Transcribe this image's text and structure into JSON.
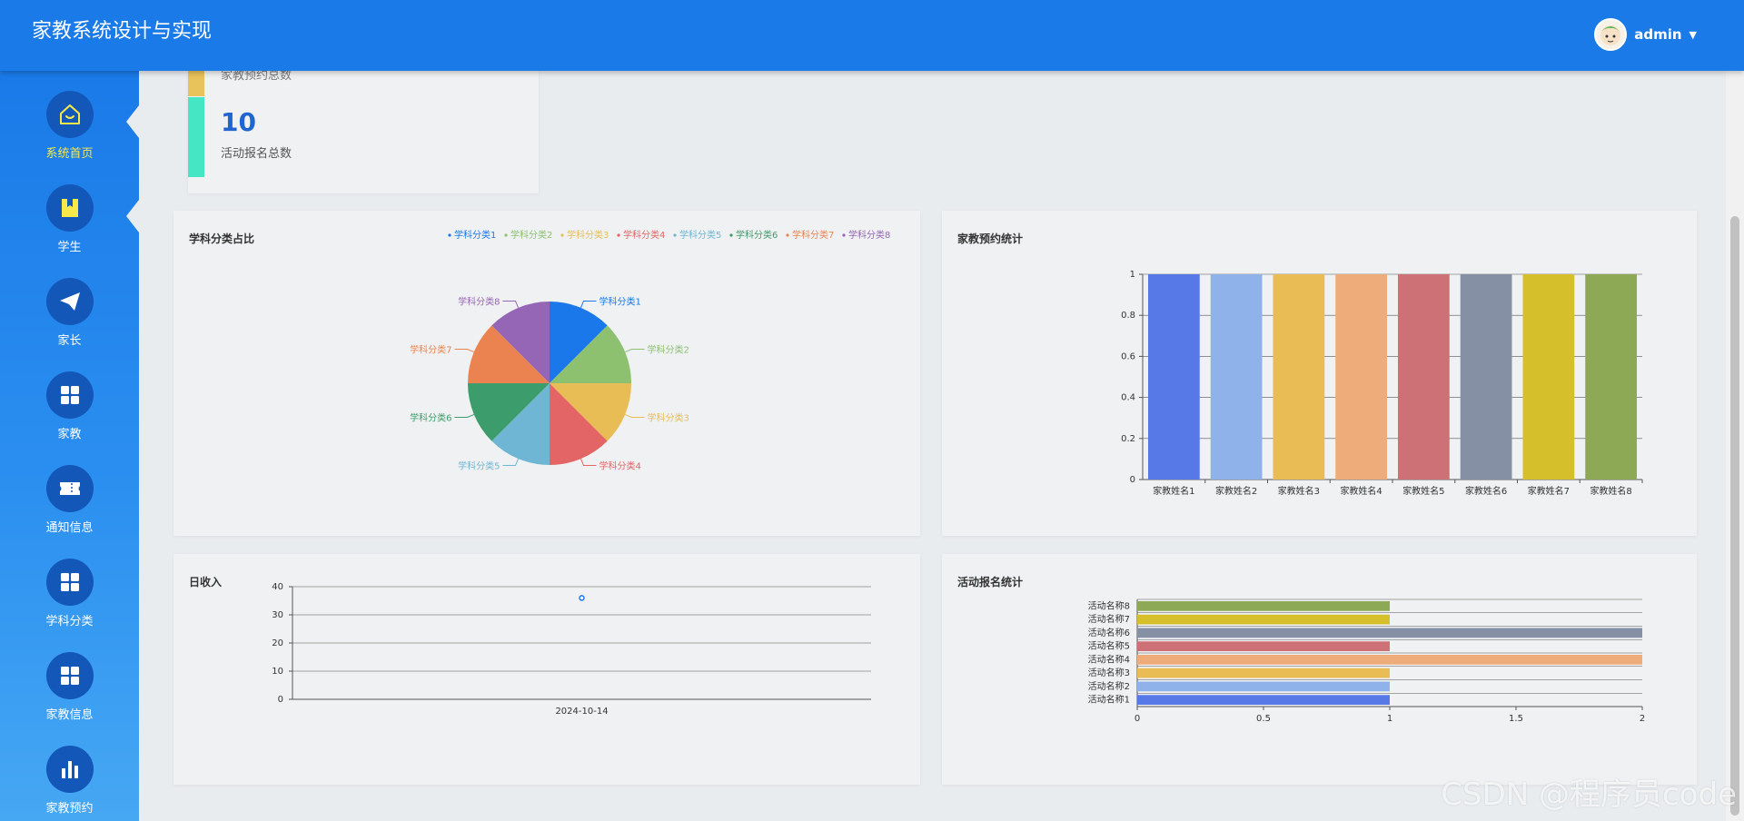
{
  "header": {
    "title": "家教系统设计与实现",
    "username": "admin"
  },
  "sidebar": {
    "items": [
      {
        "label": "系统首页",
        "icon": "home-icon"
      },
      {
        "label": "学生",
        "icon": "book-icon"
      },
      {
        "label": "家长",
        "icon": "paper-plane-icon"
      },
      {
        "label": "家教",
        "icon": "grid-icon"
      },
      {
        "label": "通知信息",
        "icon": "ticket-icon"
      },
      {
        "label": "学科分类",
        "icon": "grid-icon"
      },
      {
        "label": "家教信息",
        "icon": "grid-icon"
      },
      {
        "label": "家教预约",
        "icon": "bar-chart-icon"
      }
    ]
  },
  "stats": {
    "prev_label": "家教预约总数",
    "value": "10",
    "label": "活动报名总数"
  },
  "colors": {
    "palette": [
      "#1b78ea",
      "#8dc16f",
      "#e8bd55",
      "#e36565",
      "#6fb6d4",
      "#3d9c6b",
      "#eb8350",
      "#9566b5"
    ],
    "bar_palette": [
      "#5679e7",
      "#90b2ea",
      "#e9bc55",
      "#eeac7a",
      "#cd7176",
      "#8590a4",
      "#d5c02b",
      "#8ea955"
    ]
  },
  "watermark": "CSDN @程序员code",
  "chart_data": [
    {
      "type": "pie",
      "title": "学科分类占比",
      "legend_position": "top-right",
      "categories": [
        "学科分类1",
        "学科分类2",
        "学科分类3",
        "学科分类4",
        "学科分类5",
        "学科分类6",
        "学科分类7",
        "学科分类8"
      ],
      "values": [
        1,
        1,
        1,
        1,
        1,
        1,
        1,
        1
      ]
    },
    {
      "type": "bar",
      "title": "家教预约统计",
      "categories": [
        "家教姓名1",
        "家教姓名2",
        "家教姓名3",
        "家教姓名4",
        "家教姓名5",
        "家教姓名6",
        "家教姓名7",
        "家教姓名8"
      ],
      "values": [
        1,
        1,
        1,
        1,
        1,
        1,
        1,
        1
      ],
      "ylim": [
        0,
        1
      ],
      "yticks": [
        "0",
        "0.2",
        "0.4",
        "0.6",
        "0.8",
        "1"
      ],
      "grid": true
    },
    {
      "type": "scatter",
      "title": "日收入",
      "x": [
        "2024-10-14"
      ],
      "values": [
        36
      ],
      "ylim": [
        0,
        40
      ],
      "yticks": [
        "0",
        "10",
        "20",
        "30",
        "40"
      ],
      "grid": true
    },
    {
      "type": "bar",
      "orientation": "horizontal",
      "title": "活动报名统计",
      "categories": [
        "活动名称1",
        "活动名称2",
        "活动名称3",
        "活动名称4",
        "活动名称5",
        "活动名称6",
        "活动名称7",
        "活动名称8"
      ],
      "values": [
        1,
        1,
        1,
        2,
        1,
        2,
        1,
        1
      ],
      "xlim": [
        0,
        2
      ],
      "xticks": [
        "0",
        "0.5",
        "1",
        "1.5",
        "2"
      ],
      "grid": true
    }
  ]
}
